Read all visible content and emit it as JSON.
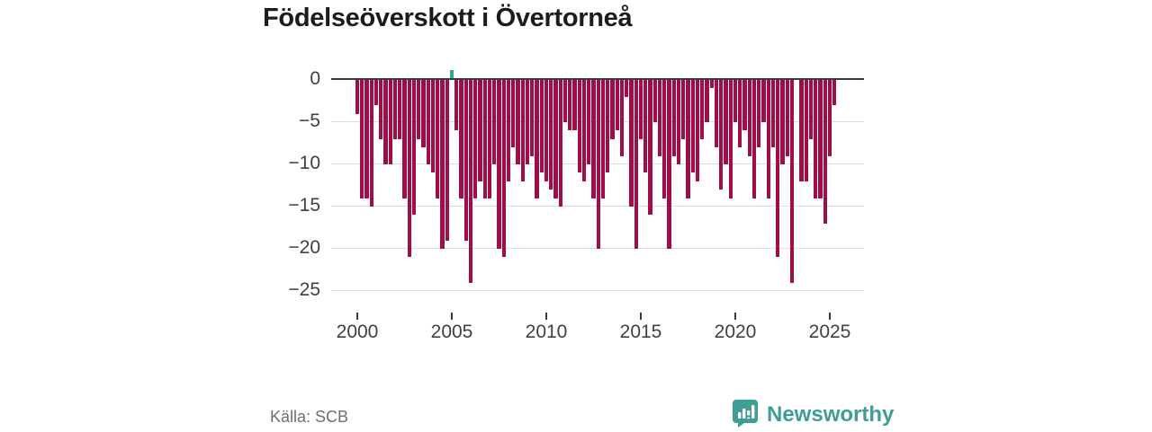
{
  "title": "Födelseöverskott i Övertorneå",
  "source": "Källa: SCB",
  "brand": {
    "name": "Newsworthy",
    "color": "#3f9d98",
    "logo": "newsworthy-speech-bubble-bar-chart"
  },
  "colors": {
    "negative_bar": "#a00d48",
    "positive_bar": "#2aa7a1",
    "axis_line": "#3a3a3a",
    "gridline": "#dddddd",
    "tick_text": "#404040",
    "title_text": "#1c1c1c",
    "source_text": "#6e6e6e"
  },
  "chart_data": {
    "type": "bar",
    "title": "Födelseöverskott i Övertorneå",
    "xlabel": "",
    "ylabel": "",
    "frequency": "quarterly",
    "start_period": "2000 Q1",
    "end_period": "2025 Q2",
    "ylim": [
      -27,
      2
    ],
    "grid": true,
    "legend": "none",
    "yticks": [
      {
        "label": "0",
        "value": 0
      },
      {
        "label": "−5",
        "value": -5
      },
      {
        "label": "−10",
        "value": -10
      },
      {
        "label": "−15",
        "value": -15
      },
      {
        "label": "−20",
        "value": -20
      },
      {
        "label": "−25",
        "value": -25
      }
    ],
    "xticks": [
      {
        "label": "2000",
        "year": 2000
      },
      {
        "label": "2005",
        "year": 2005
      },
      {
        "label": "2010",
        "year": 2010
      },
      {
        "label": "2015",
        "year": 2015
      },
      {
        "label": "2020",
        "year": 2020
      },
      {
        "label": "2025",
        "year": 2025
      }
    ],
    "values": [
      -4,
      -14,
      -14,
      -15,
      -3,
      -7,
      -10,
      -10,
      -7,
      -7,
      -14,
      -21,
      -16,
      -7,
      -8,
      -10,
      -11,
      -14,
      -20,
      -19,
      1,
      -6,
      -14,
      -19,
      -24,
      -14,
      -12,
      -14,
      -14,
      -10,
      -20,
      -21,
      -12,
      -8,
      -10,
      -12,
      -10,
      -9,
      -14,
      -11,
      -12,
      -13,
      -14,
      -15,
      -5,
      -6,
      -6,
      -11,
      -12,
      -10,
      -14,
      -20,
      -14,
      -11,
      -7,
      -6,
      -9,
      -2,
      -15,
      -20,
      -7,
      -11,
      -16,
      -5,
      -9,
      -14,
      -20,
      -9,
      -10,
      -7,
      -14,
      -11,
      -12,
      -7,
      -5,
      -1,
      -8,
      -13,
      -10,
      -14,
      -5,
      -8,
      -6,
      -9,
      -14,
      -8,
      -5,
      -14,
      -8,
      -21,
      -10,
      -9,
      -24,
      0,
      -12,
      -12,
      -7,
      -14,
      -14,
      -17,
      -9,
      -3
    ]
  }
}
